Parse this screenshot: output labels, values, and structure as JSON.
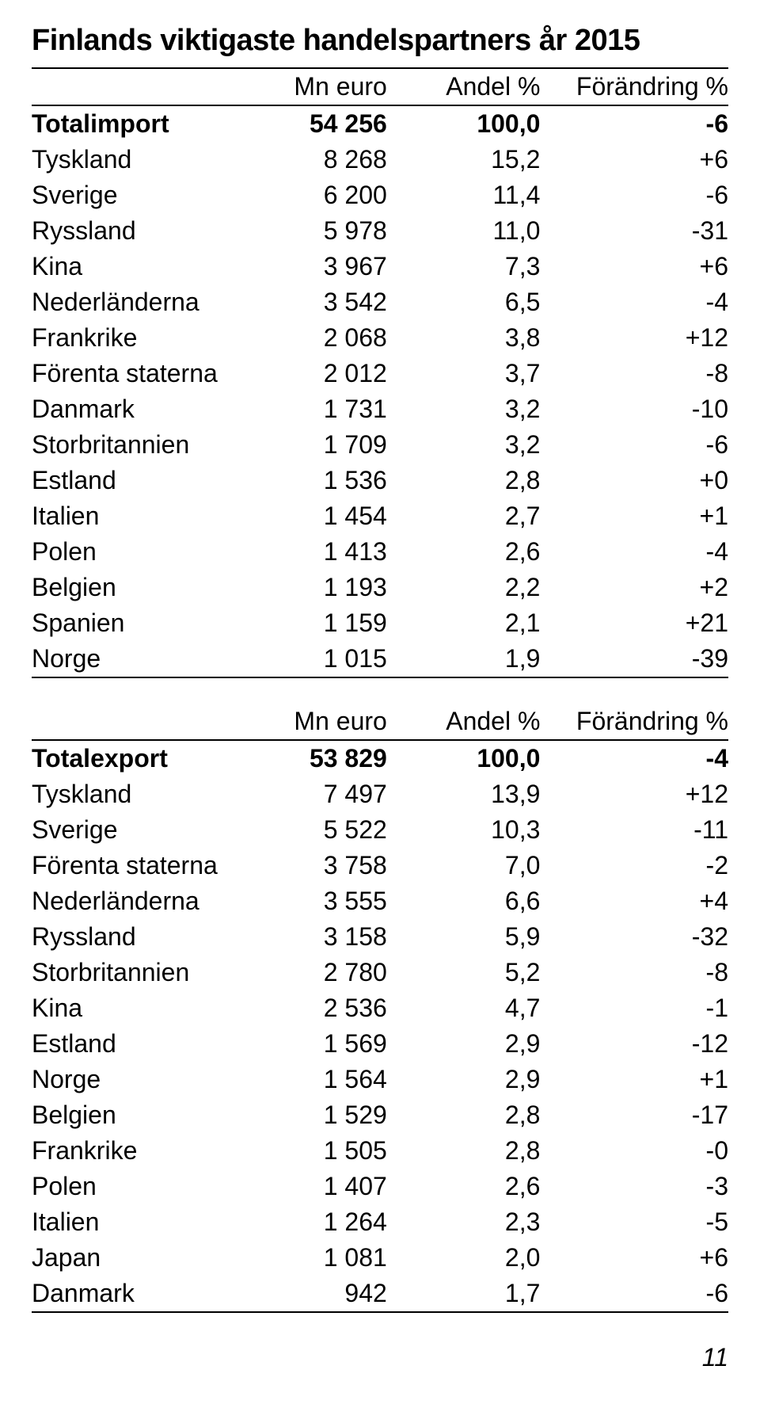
{
  "title": "Finlands viktigaste handelspartners år 2015",
  "pageNumber": "11",
  "columns": {
    "euro": "Mn euro",
    "andel": "Andel %",
    "change": "Förändring %"
  },
  "importTable": {
    "rows": [
      {
        "label": "Totalimport",
        "euro": "54 256",
        "andel": "100,0",
        "change": "-6",
        "bold": true
      },
      {
        "label": "Tyskland",
        "euro": "8 268",
        "andel": "15,2",
        "change": "+6"
      },
      {
        "label": "Sverige",
        "euro": "6 200",
        "andel": "11,4",
        "change": "-6"
      },
      {
        "label": "Ryssland",
        "euro": "5 978",
        "andel": "11,0",
        "change": "-31"
      },
      {
        "label": "Kina",
        "euro": "3 967",
        "andel": "7,3",
        "change": "+6"
      },
      {
        "label": "Nederländerna",
        "euro": "3 542",
        "andel": "6,5",
        "change": "-4"
      },
      {
        "label": "Frankrike",
        "euro": "2 068",
        "andel": "3,8",
        "change": "+12"
      },
      {
        "label": "Förenta staterna",
        "euro": "2 012",
        "andel": "3,7",
        "change": "-8"
      },
      {
        "label": "Danmark",
        "euro": "1 731",
        "andel": "3,2",
        "change": "-10"
      },
      {
        "label": "Storbritannien",
        "euro": "1 709",
        "andel": "3,2",
        "change": "-6"
      },
      {
        "label": "Estland",
        "euro": "1 536",
        "andel": "2,8",
        "change": "+0"
      },
      {
        "label": "Italien",
        "euro": "1 454",
        "andel": "2,7",
        "change": "+1"
      },
      {
        "label": "Polen",
        "euro": "1 413",
        "andel": "2,6",
        "change": "-4"
      },
      {
        "label": "Belgien",
        "euro": "1 193",
        "andel": "2,2",
        "change": "+2"
      },
      {
        "label": "Spanien",
        "euro": "1 159",
        "andel": "2,1",
        "change": "+21"
      },
      {
        "label": "Norge",
        "euro": "1 015",
        "andel": "1,9",
        "change": "-39"
      }
    ]
  },
  "exportTable": {
    "rows": [
      {
        "label": "Totalexport",
        "euro": "53 829",
        "andel": "100,0",
        "change": "-4",
        "bold": true
      },
      {
        "label": "Tyskland",
        "euro": "7 497",
        "andel": "13,9",
        "change": "+12"
      },
      {
        "label": "Sverige",
        "euro": "5 522",
        "andel": "10,3",
        "change": "-11"
      },
      {
        "label": "Förenta staterna",
        "euro": "3 758",
        "andel": "7,0",
        "change": "-2"
      },
      {
        "label": "Nederländerna",
        "euro": "3 555",
        "andel": "6,6",
        "change": "+4"
      },
      {
        "label": "Ryssland",
        "euro": "3 158",
        "andel": "5,9",
        "change": "-32"
      },
      {
        "label": "Storbritannien",
        "euro": "2 780",
        "andel": "5,2",
        "change": "-8"
      },
      {
        "label": "Kina",
        "euro": "2 536",
        "andel": "4,7",
        "change": "-1"
      },
      {
        "label": "Estland",
        "euro": "1 569",
        "andel": "2,9",
        "change": "-12"
      },
      {
        "label": "Norge",
        "euro": "1 564",
        "andel": "2,9",
        "change": "+1"
      },
      {
        "label": "Belgien",
        "euro": "1 529",
        "andel": "2,8",
        "change": "-17"
      },
      {
        "label": "Frankrike",
        "euro": "1 505",
        "andel": "2,8",
        "change": "-0"
      },
      {
        "label": "Polen",
        "euro": "1 407",
        "andel": "2,6",
        "change": "-3"
      },
      {
        "label": "Italien",
        "euro": "1 264",
        "andel": "2,3",
        "change": "-5"
      },
      {
        "label": "Japan",
        "euro": "1 081",
        "andel": "2,0",
        "change": "+6"
      },
      {
        "label": "Danmark",
        "euro": "942",
        "andel": "1,7",
        "change": "-6"
      }
    ]
  }
}
